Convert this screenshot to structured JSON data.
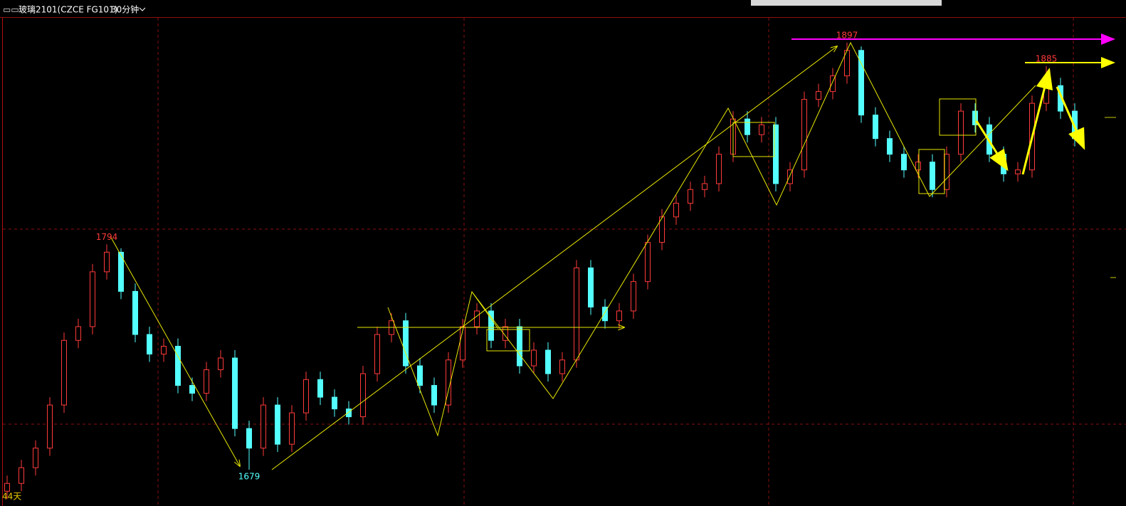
{
  "chart_data": {
    "type": "candlestick",
    "title": "玻璃2101(CZCE FG101)",
    "period": "30分钟",
    "footer_label": "44天",
    "up_color": "#ff3a3a",
    "down_color": "#54ffff",
    "ylim": [
      1663,
      1910
    ],
    "open": [
      1668,
      1672,
      1680,
      1690,
      1712,
      1745,
      1752,
      1780,
      1790,
      1770,
      1748,
      1738,
      1742,
      1722,
      1718,
      1730,
      1736,
      1700,
      1690,
      1712,
      1692,
      1708,
      1725,
      1716,
      1710,
      1706,
      1728,
      1748,
      1755,
      1732,
      1722,
      1712,
      1735,
      1752,
      1760,
      1745,
      1752,
      1732,
      1740,
      1728,
      1735,
      1782,
      1762,
      1755,
      1760,
      1775,
      1795,
      1808,
      1815,
      1822,
      1825,
      1840,
      1858,
      1850,
      1855,
      1825,
      1832,
      1868,
      1872,
      1880,
      1893,
      1860,
      1848,
      1840,
      1832,
      1836,
      1822,
      1840,
      1862,
      1855,
      1840,
      1830,
      1832,
      1866,
      1875,
      1862
    ],
    "high": [
      1676,
      1684,
      1694,
      1716,
      1749,
      1756,
      1784,
      1794,
      1792,
      1774,
      1752,
      1746,
      1746,
      1726,
      1734,
      1740,
      1740,
      1704,
      1716,
      1716,
      1712,
      1729,
      1729,
      1720,
      1714,
      1732,
      1752,
      1759,
      1759,
      1736,
      1726,
      1739,
      1756,
      1764,
      1764,
      1756,
      1756,
      1744,
      1744,
      1739,
      1786,
      1786,
      1766,
      1764,
      1779,
      1799,
      1812,
      1819,
      1826,
      1829,
      1844,
      1862,
      1862,
      1859,
      1859,
      1836,
      1872,
      1876,
      1884,
      1897,
      1895,
      1864,
      1852,
      1844,
      1840,
      1840,
      1844,
      1866,
      1866,
      1859,
      1844,
      1836,
      1870,
      1885,
      1879,
      1866
    ],
    "low": [
      1664,
      1668,
      1676,
      1686,
      1708,
      1741,
      1748,
      1776,
      1766,
      1744,
      1734,
      1734,
      1718,
      1714,
      1714,
      1726,
      1696,
      1679,
      1686,
      1688,
      1688,
      1704,
      1712,
      1706,
      1702,
      1702,
      1724,
      1744,
      1728,
      1718,
      1708,
      1708,
      1731,
      1748,
      1741,
      1741,
      1728,
      1728,
      1724,
      1724,
      1731,
      1758,
      1751,
      1751,
      1756,
      1771,
      1791,
      1804,
      1811,
      1818,
      1821,
      1836,
      1846,
      1846,
      1821,
      1821,
      1828,
      1864,
      1868,
      1876,
      1856,
      1844,
      1836,
      1828,
      1828,
      1818,
      1818,
      1836,
      1851,
      1836,
      1826,
      1826,
      1828,
      1862,
      1858,
      1844
    ],
    "close": [
      1672,
      1680,
      1690,
      1712,
      1745,
      1752,
      1780,
      1790,
      1770,
      1748,
      1738,
      1742,
      1722,
      1718,
      1730,
      1736,
      1700,
      1690,
      1712,
      1692,
      1708,
      1725,
      1716,
      1710,
      1706,
      1728,
      1748,
      1755,
      1732,
      1722,
      1712,
      1735,
      1752,
      1760,
      1745,
      1752,
      1732,
      1740,
      1728,
      1735,
      1782,
      1762,
      1755,
      1760,
      1775,
      1795,
      1808,
      1815,
      1822,
      1825,
      1840,
      1858,
      1850,
      1855,
      1825,
      1832,
      1868,
      1872,
      1880,
      1893,
      1860,
      1848,
      1840,
      1832,
      1836,
      1822,
      1840,
      1862,
      1855,
      1840,
      1830,
      1832,
      1866,
      1875,
      1862,
      1848
    ],
    "annotations": [
      1794,
      1679,
      1897,
      1885
    ]
  }
}
